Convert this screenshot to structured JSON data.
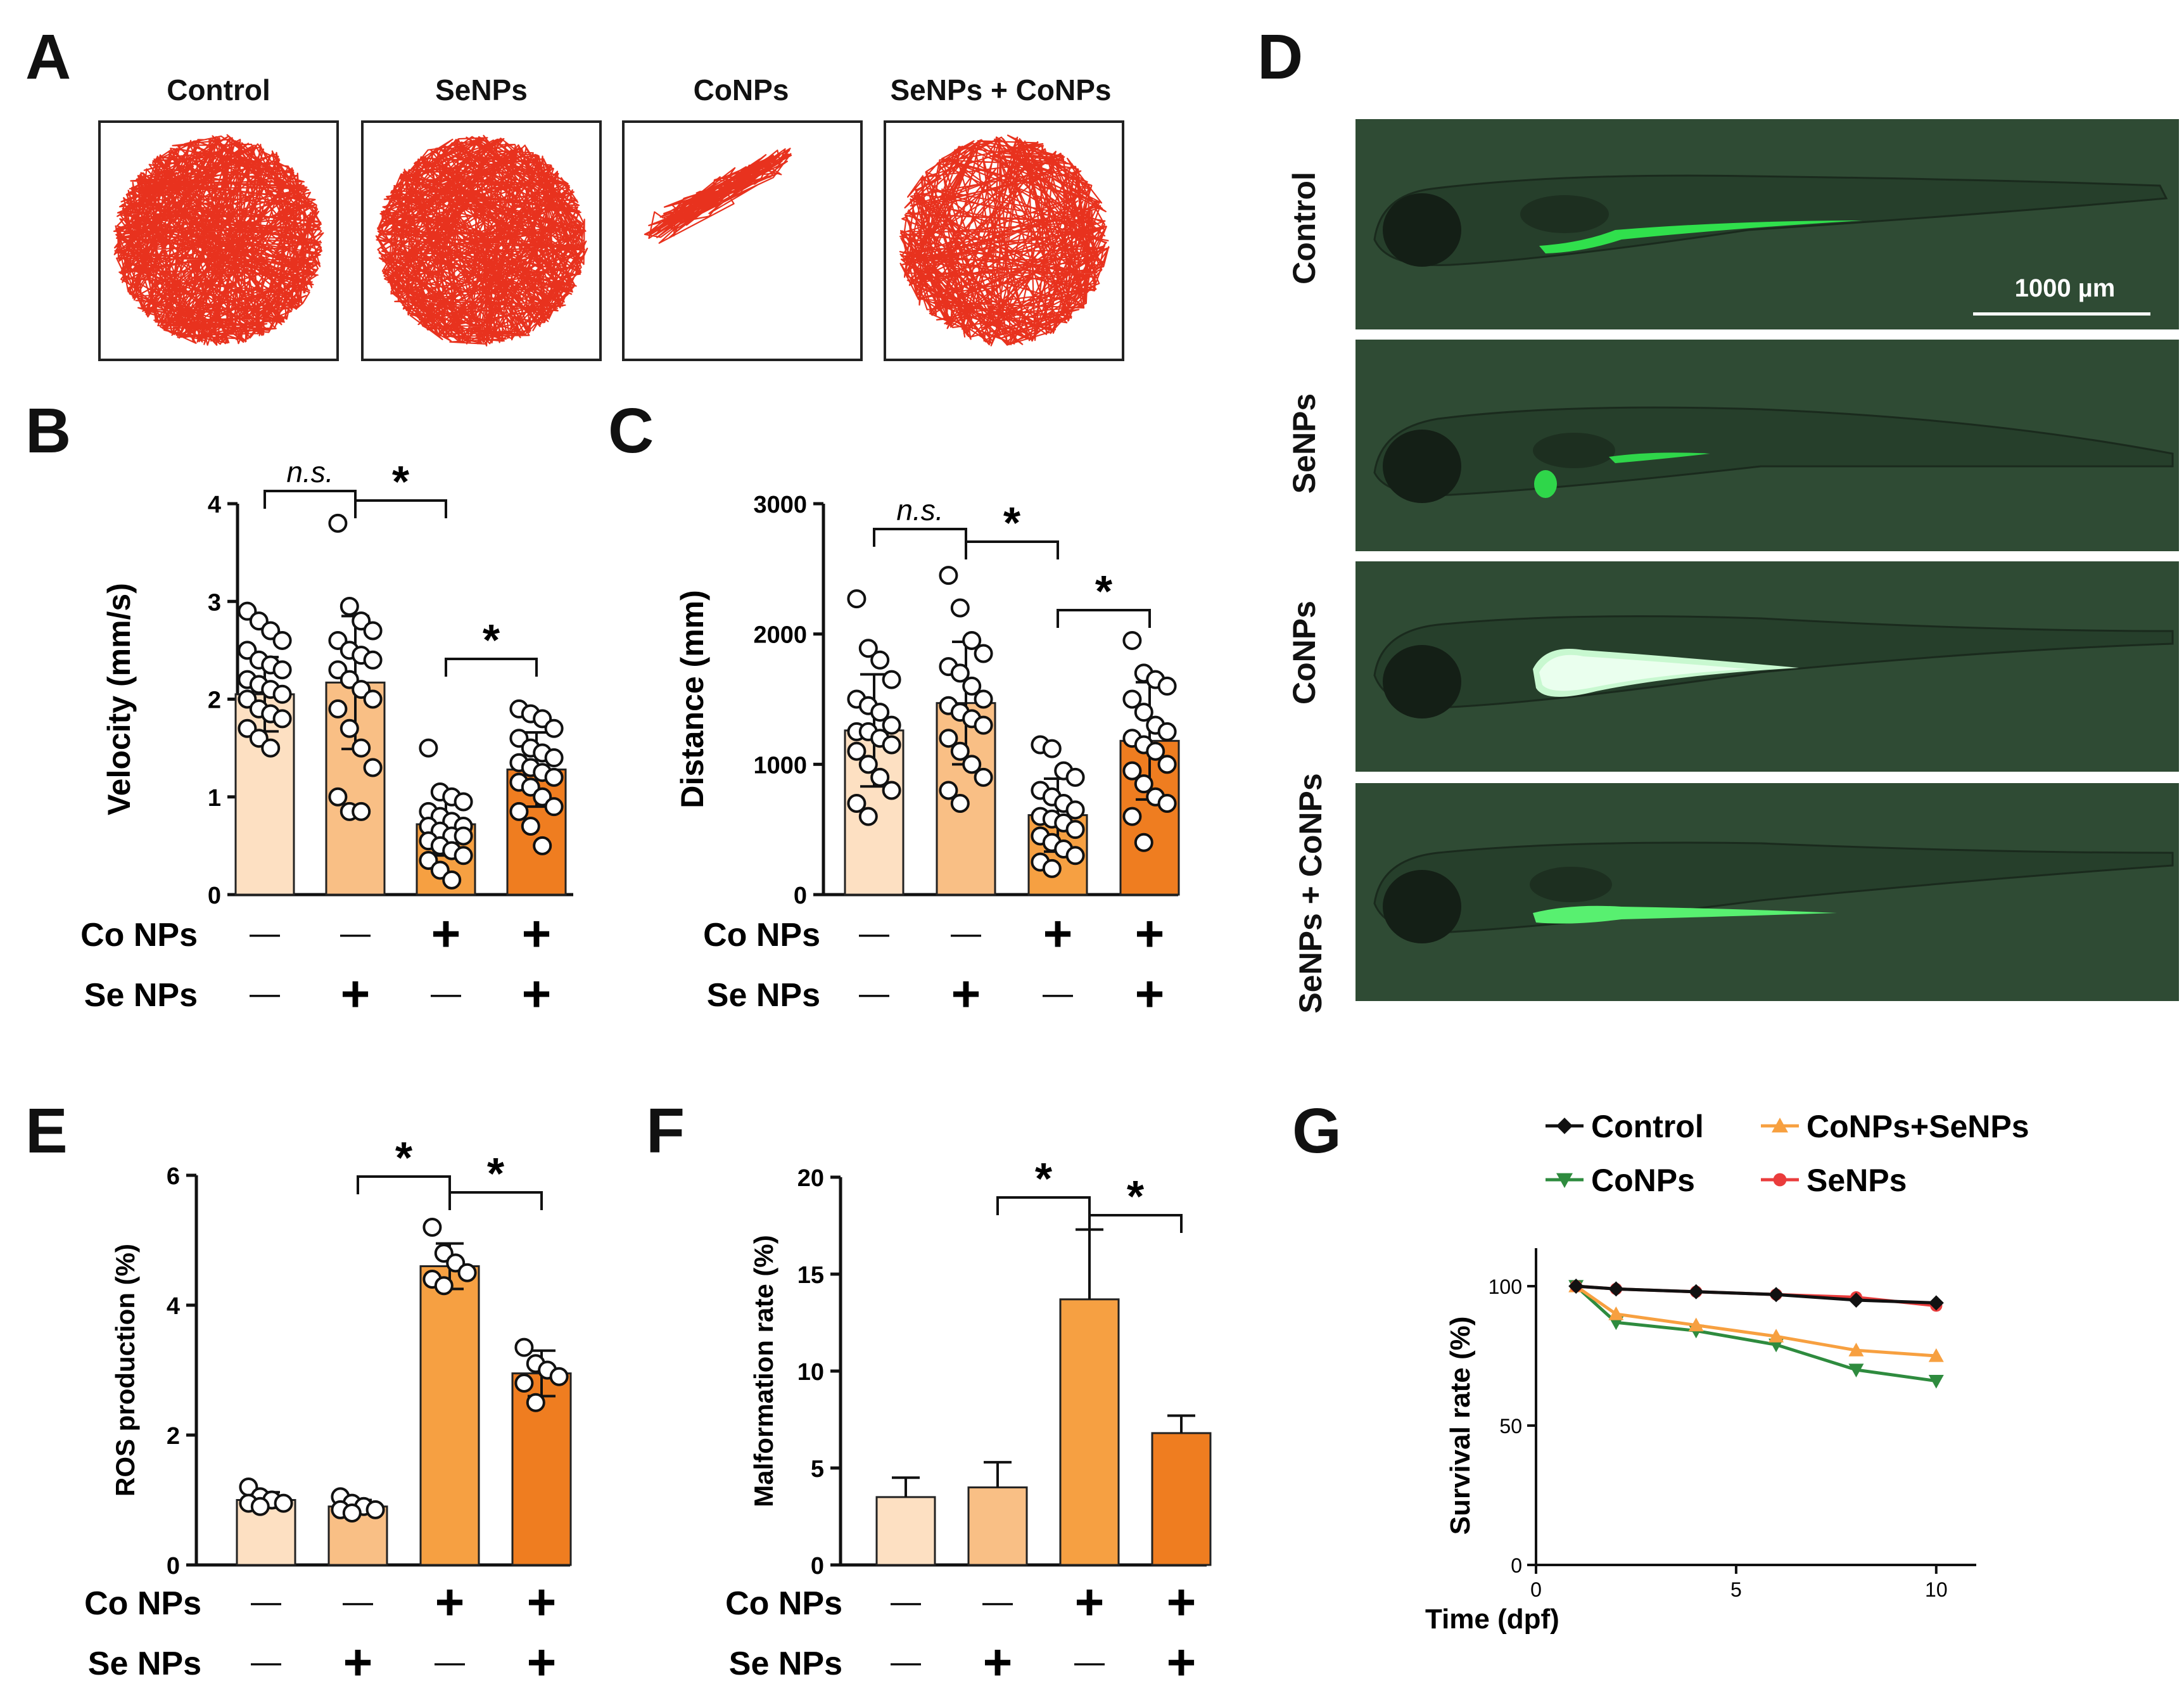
{
  "panel_labels": {
    "A": "A",
    "B": "B",
    "C": "C",
    "D": "D",
    "E": "E",
    "F": "F",
    "G": "G"
  },
  "panel_a": {
    "titles": [
      "Control",
      "SeNPs",
      "CoNPs",
      "SeNPs + CoNPs"
    ],
    "track_color": "#e8321e"
  },
  "panel_d": {
    "labels": [
      "Control",
      "SeNPs",
      "CoNPs",
      "SeNPs + CoNPs"
    ],
    "scale_bar": "1000 µm"
  },
  "sig": {
    "ns": "n.s.",
    "star": "*"
  },
  "groups": {
    "row1_label": "Co NPs",
    "row2_label": "Se NPs",
    "co": [
      "—",
      "—",
      "+",
      "+"
    ],
    "se": [
      "—",
      "+",
      "—",
      "+"
    ]
  },
  "bar_colors": [
    "#fde0c2",
    "#f9bf85",
    "#f6a042",
    "#ef7d20"
  ],
  "chart_data": [
    {
      "panel": "B",
      "type": "bar",
      "ylabel": "Velocity (mm/s)",
      "ylim": [
        0,
        4
      ],
      "yticks": [
        0,
        1,
        2,
        3,
        4
      ],
      "categories": [
        "Control",
        "SeNPs",
        "CoNPs",
        "SeNPs + CoNPs"
      ],
      "values": [
        2.05,
        2.17,
        0.72,
        1.28
      ],
      "errors": [
        0.38,
        0.68,
        0.32,
        0.38
      ],
      "points": [
        [
          2.9,
          2.8,
          2.7,
          2.6,
          2.5,
          2.4,
          2.35,
          2.3,
          2.2,
          2.15,
          2.1,
          2.05,
          2.0,
          1.9,
          1.85,
          1.8,
          1.7,
          1.6,
          1.5
        ],
        [
          3.8,
          2.95,
          2.8,
          2.7,
          2.6,
          2.5,
          2.45,
          2.4,
          2.3,
          2.2,
          2.1,
          2.0,
          1.9,
          1.7,
          1.5,
          1.3,
          1.0,
          0.85,
          0.85
        ],
        [
          1.5,
          1.05,
          1.0,
          0.95,
          0.85,
          0.8,
          0.75,
          0.7,
          0.7,
          0.65,
          0.6,
          0.6,
          0.55,
          0.5,
          0.45,
          0.4,
          0.35,
          0.25,
          0.15
        ],
        [
          1.9,
          1.85,
          1.8,
          1.7,
          1.6,
          1.5,
          1.45,
          1.4,
          1.35,
          1.3,
          1.25,
          1.2,
          1.15,
          1.1,
          1.0,
          0.9,
          0.85,
          0.7,
          0.5
        ]
      ],
      "brackets": [
        {
          "from": 0,
          "to": 1,
          "label": "n.s."
        },
        {
          "from": 1,
          "to": 2,
          "label": "*"
        },
        {
          "from": 2,
          "to": 3,
          "label": "*"
        }
      ]
    },
    {
      "panel": "C",
      "type": "bar",
      "ylabel": "Distance (mm)",
      "ylim": [
        0,
        3000
      ],
      "yticks": [
        0,
        1000,
        2000,
        3000
      ],
      "categories": [
        "Control",
        "SeNPs",
        "CoNPs",
        "SeNPs + CoNPs"
      ],
      "values": [
        1260,
        1470,
        610,
        1180
      ],
      "errors": [
        430,
        470,
        280,
        450
      ],
      "points": [
        [
          2270,
          1890,
          1800,
          1650,
          1500,
          1450,
          1400,
          1300,
          1250,
          1250,
          1200,
          1150,
          1100,
          1000,
          900,
          800,
          700,
          600
        ],
        [
          2450,
          2200,
          1950,
          1850,
          1750,
          1700,
          1600,
          1500,
          1450,
          1400,
          1350,
          1300,
          1200,
          1100,
          1000,
          900,
          800,
          700
        ],
        [
          1150,
          1120,
          950,
          900,
          800,
          750,
          700,
          650,
          600,
          580,
          550,
          500,
          450,
          400,
          350,
          300,
          250,
          200
        ],
        [
          1950,
          1700,
          1650,
          1600,
          1500,
          1400,
          1300,
          1250,
          1200,
          1150,
          1100,
          1000,
          950,
          850,
          750,
          700,
          600,
          400
        ]
      ],
      "brackets": [
        {
          "from": 0,
          "to": 1,
          "label": "n.s."
        },
        {
          "from": 1,
          "to": 2,
          "label": "*"
        },
        {
          "from": 2,
          "to": 3,
          "label": "*"
        }
      ]
    },
    {
      "panel": "E",
      "type": "bar",
      "ylabel": "ROS production (%)",
      "ylim": [
        0,
        6
      ],
      "yticks": [
        0,
        2,
        4,
        6
      ],
      "categories": [
        "Control",
        "SeNPs",
        "CoNPs",
        "SeNPs + CoNPs"
      ],
      "values": [
        1.0,
        0.9,
        4.6,
        2.95
      ],
      "errors": [
        0.12,
        0.1,
        0.35,
        0.35
      ],
      "points": [
        [
          1.2,
          1.05,
          1.0,
          0.95,
          0.95,
          0.9
        ],
        [
          1.05,
          0.95,
          0.9,
          0.85,
          0.85,
          0.8
        ],
        [
          5.2,
          4.8,
          4.65,
          4.5,
          4.4,
          4.3
        ],
        [
          3.35,
          3.1,
          3.0,
          2.9,
          2.8,
          2.5
        ]
      ],
      "brackets": [
        {
          "from": 1,
          "to": 2,
          "label": "*"
        },
        {
          "from": 2,
          "to": 3,
          "label": "*"
        }
      ]
    },
    {
      "panel": "F",
      "type": "bar",
      "ylabel": "Malformation rate (%)",
      "ylim": [
        0,
        20
      ],
      "yticks": [
        0,
        5,
        10,
        15,
        20
      ],
      "categories": [
        "Control",
        "SeNPs",
        "CoNPs",
        "SeNPs + CoNPs"
      ],
      "values": [
        3.5,
        4.0,
        13.7,
        6.8
      ],
      "errors": [
        1.0,
        1.3,
        3.6,
        0.9
      ],
      "brackets": [
        {
          "from": 1,
          "to": 2,
          "label": "*"
        },
        {
          "from": 2,
          "to": 3,
          "label": "*"
        }
      ]
    },
    {
      "panel": "G",
      "type": "line",
      "xlabel": "Time (dpf)",
      "ylabel": "Survival rate (%)",
      "xlim": [
        0,
        11
      ],
      "ylim": [
        0,
        100
      ],
      "xticks": [
        0,
        5,
        10
      ],
      "yticks": [
        0,
        50,
        100
      ],
      "series": [
        {
          "name": "Control",
          "color": "#111111",
          "marker": "diamond",
          "x": [
            1,
            2,
            4,
            6,
            8,
            10
          ],
          "y": [
            100,
            99,
            98,
            97,
            95,
            94
          ]
        },
        {
          "name": "CoNPs+SeNPs",
          "color": "#f7a040",
          "marker": "triangle-up",
          "x": [
            1,
            2,
            4,
            6,
            8,
            10
          ],
          "y": [
            100,
            90,
            86,
            82,
            77,
            75
          ]
        },
        {
          "name": "CoNPs",
          "color": "#2e8b3e",
          "marker": "triangle-down",
          "x": [
            1,
            2,
            4,
            6,
            8,
            10
          ],
          "y": [
            100,
            87,
            84,
            79,
            70,
            66
          ]
        },
        {
          "name": "SeNPs",
          "color": "#ea3c3c",
          "marker": "circle",
          "x": [
            1,
            2,
            4,
            6,
            8,
            10
          ],
          "y": [
            100,
            99,
            98,
            97,
            96,
            93
          ]
        }
      ]
    }
  ]
}
